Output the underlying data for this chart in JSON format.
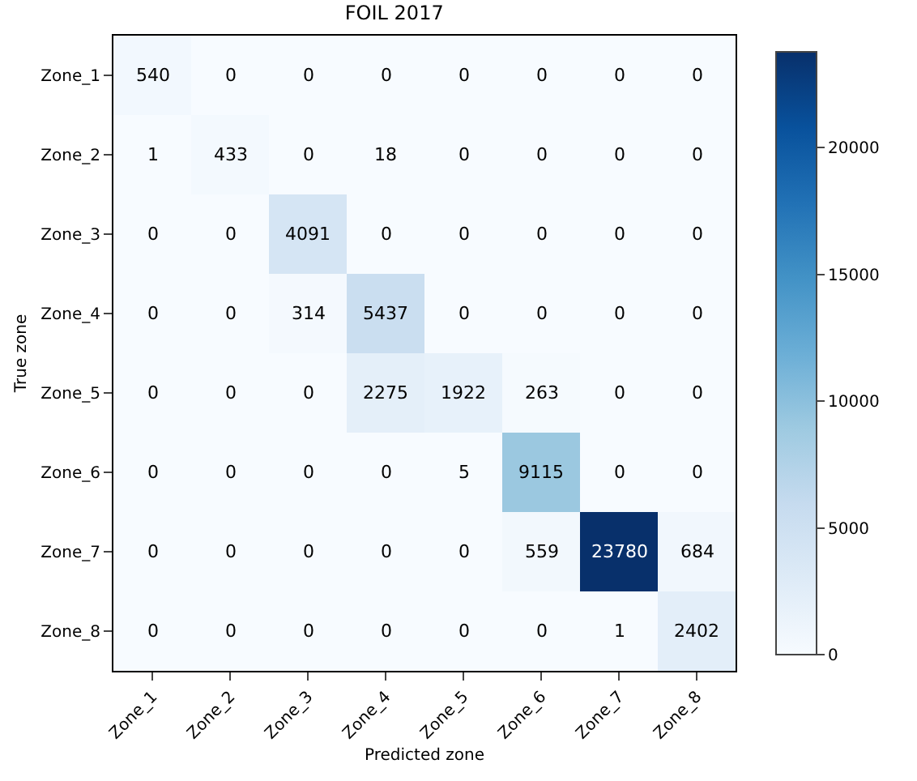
{
  "chart_data": {
    "type": "heatmap",
    "title": "FOIL 2017",
    "xlabel": "Predicted zone",
    "ylabel": "True zone",
    "categories": [
      "Zone_1",
      "Zone_2",
      "Zone_3",
      "Zone_4",
      "Zone_5",
      "Zone_6",
      "Zone_7",
      "Zone_8"
    ],
    "y_categories": [
      "Zone_1",
      "Zone_2",
      "Zone_3",
      "Zone_4",
      "Zone_5",
      "Zone_6",
      "Zone_7",
      "Zone_8"
    ],
    "cells": [
      [
        540,
        0,
        0,
        0,
        0,
        0,
        0,
        0
      ],
      [
        1,
        433,
        0,
        18,
        0,
        0,
        0,
        0
      ],
      [
        0,
        0,
        4091,
        0,
        0,
        0,
        0,
        0
      ],
      [
        0,
        0,
        314,
        5437,
        0,
        0,
        0,
        0
      ],
      [
        0,
        0,
        0,
        2275,
        1922,
        263,
        0,
        0
      ],
      [
        0,
        0,
        0,
        0,
        5,
        9115,
        0,
        0
      ],
      [
        0,
        0,
        0,
        0,
        0,
        559,
        23780,
        684
      ],
      [
        0,
        0,
        0,
        0,
        0,
        0,
        1,
        2402
      ]
    ],
    "data_labels": true,
    "clim": [
      0,
      23780
    ],
    "cticks": [
      0,
      5000,
      10000,
      15000,
      20000
    ]
  }
}
